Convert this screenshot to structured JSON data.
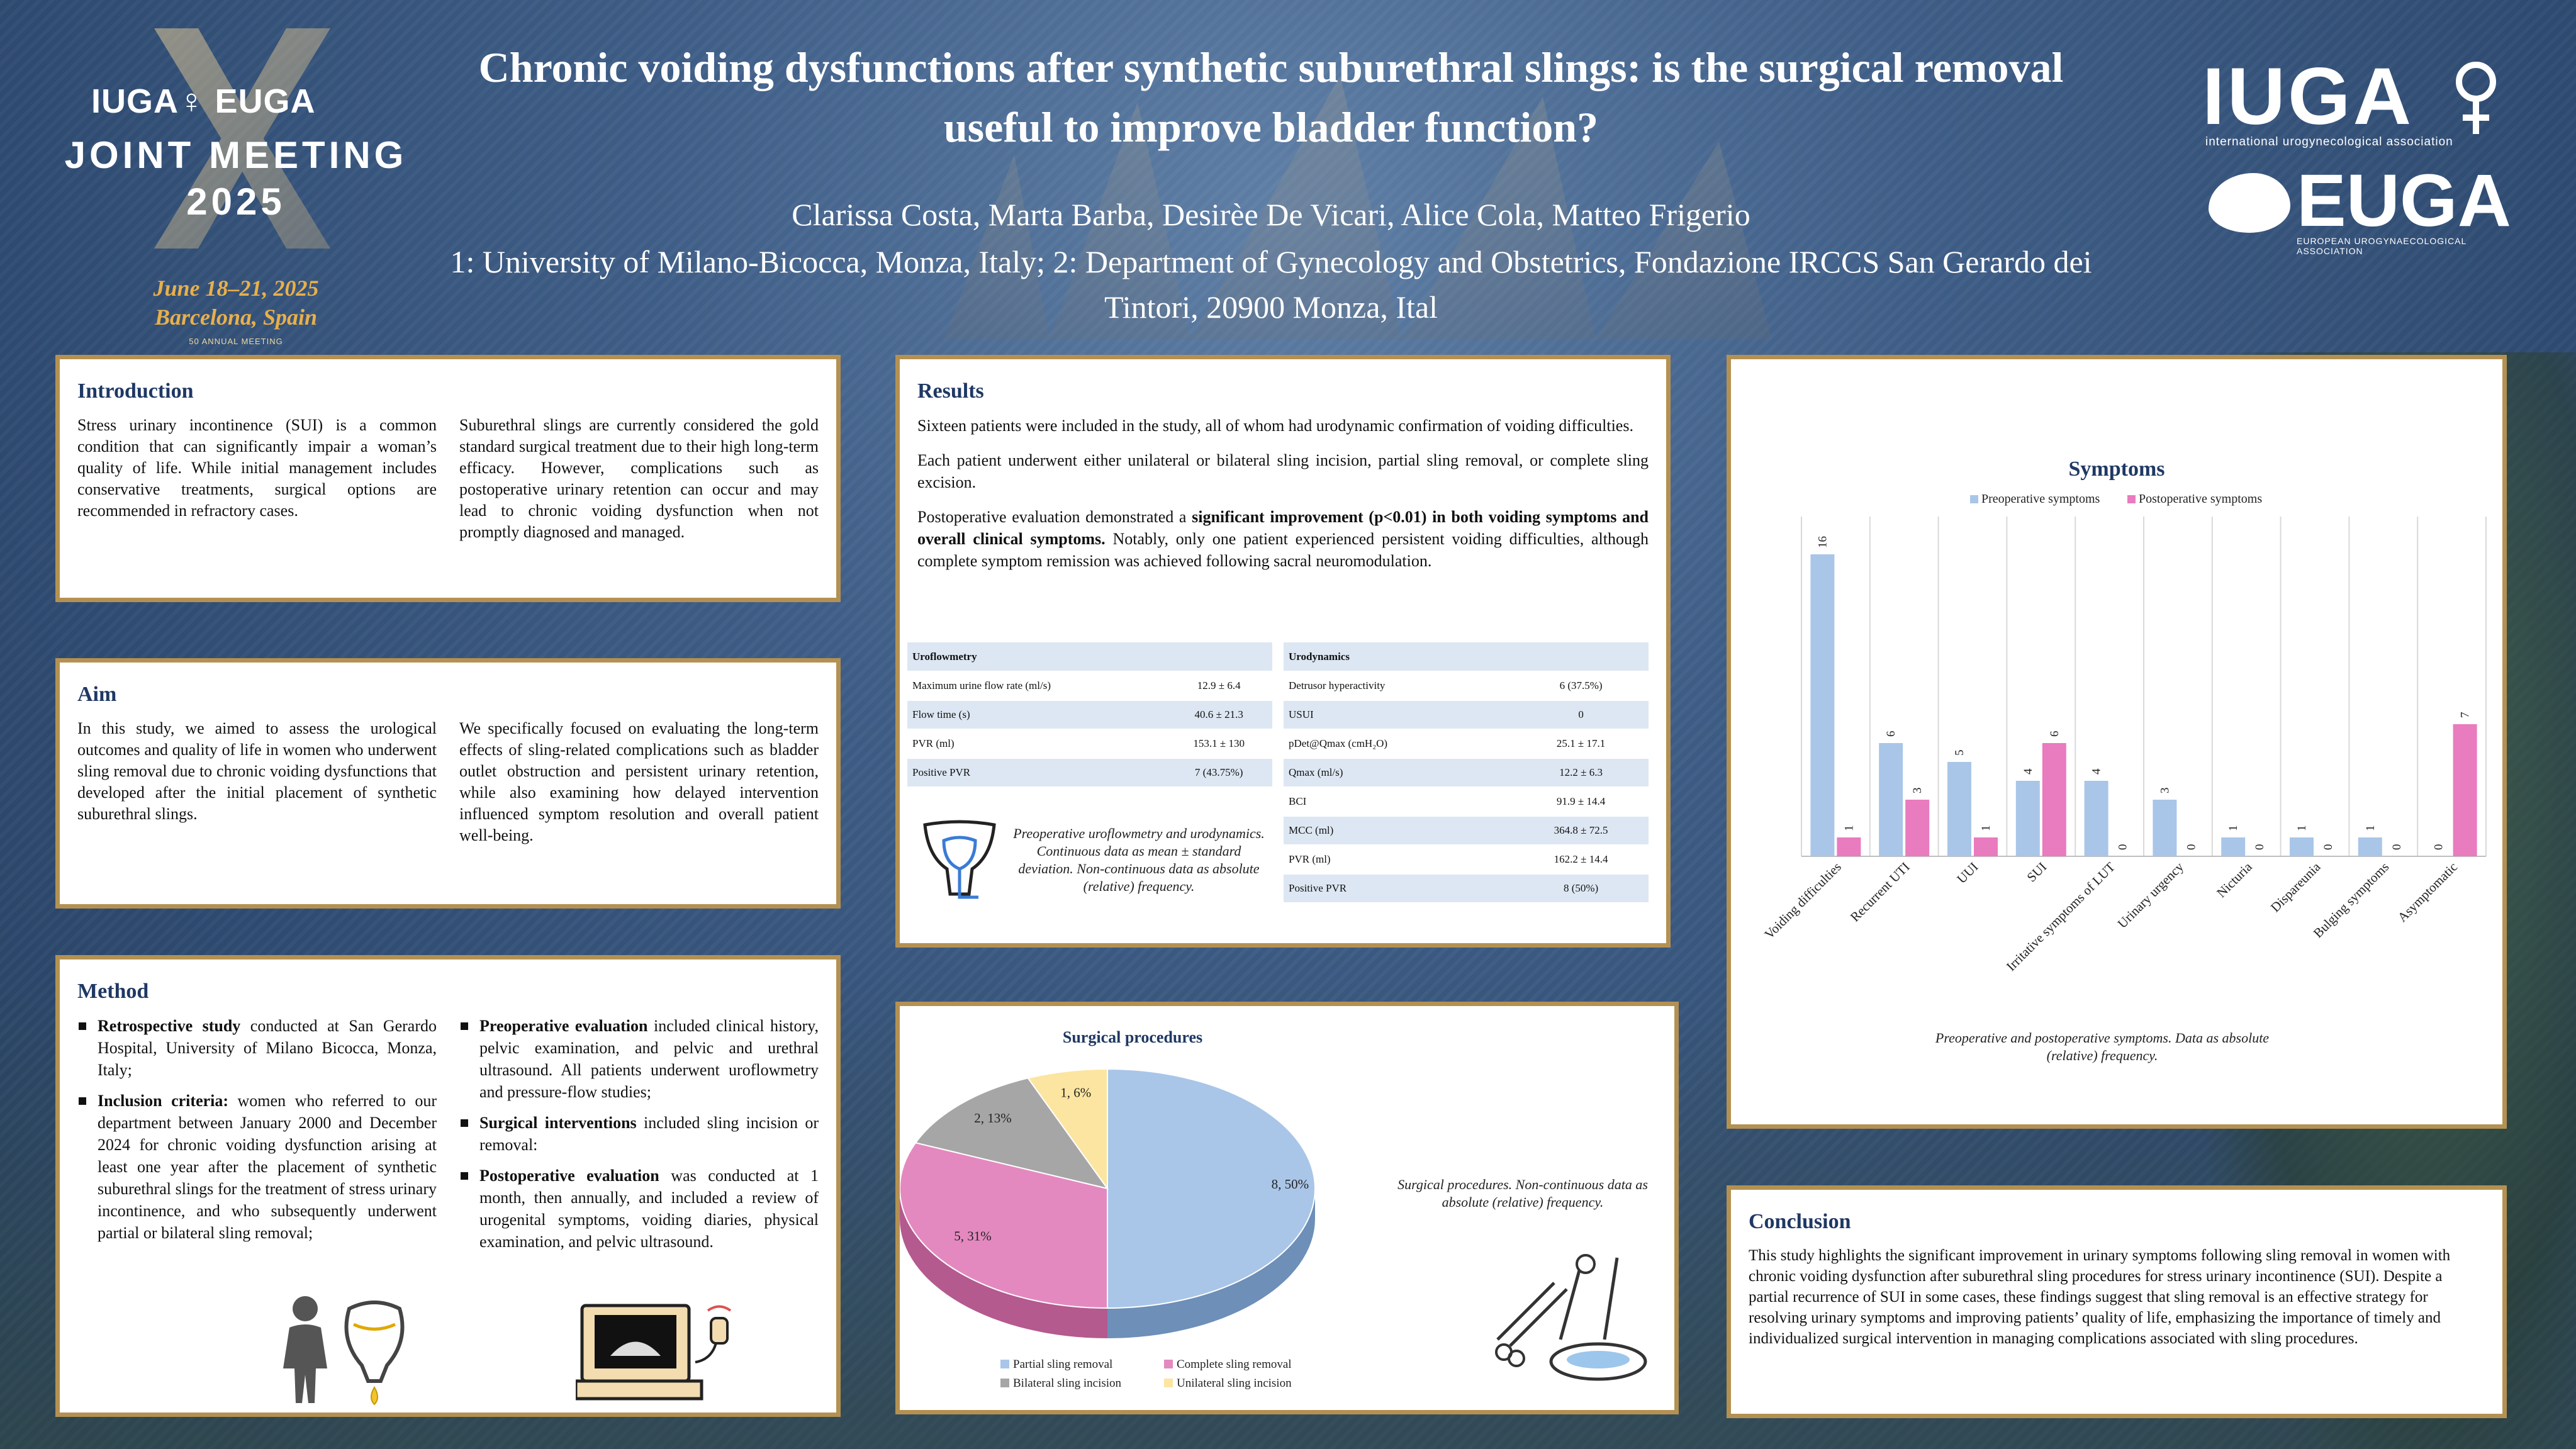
{
  "header": {
    "logo_left": {
      "brand": "IUGA♀ EUGA",
      "meeting_line1": "JOINT MEETING",
      "meeting_line2": "2025",
      "dates": "June 18–21, 2025",
      "location": "Barcelona, Spain",
      "anniversary": "50 ANNUAL MEETING"
    },
    "title": "Chronic voiding dysfunctions after synthetic suburethral slings: is the surgical removal useful to improve bladder function?",
    "authors": "Clarissa Costa, Marta Barba, Desirèe De Vicari, Alice Cola, Matteo Frigerio",
    "affiliation": "1: University of Milano-Bicocca, Monza, Italy; 2: Department of Gynecology and Obstetrics, Fondazione IRCCS San Gerardo dei Tintori, 20900 Monza, Ital",
    "logo_right": {
      "iuga": "IUGA",
      "iuga_sub": "international urogynecological association",
      "euga": "EUGA",
      "euga_sub": "EUROPEAN UROGYNAECOLOGICAL ASSOCIATION"
    }
  },
  "introduction": {
    "heading": "Introduction",
    "col1": "Stress urinary incontinence (SUI) is a common condition that can significantly impair a woman’s quality of life. While initial management includes conservative treatments, surgical options are recommended in refractory cases.",
    "col2": "Suburethral slings are currently considered the gold standard surgical treatment due to their high long-term efficacy. However, complications such as postoperative urinary retention can occur and may lead to chronic voiding dysfunction when not promptly diagnosed and managed."
  },
  "aim": {
    "heading": "Aim",
    "col1": "In this study, we aimed to assess the urological outcomes and quality of life in women who underwent sling removal due to chronic voiding dysfunctions that developed after the initial placement of synthetic suburethral slings.",
    "col2": "We specifically focused on evaluating the long-term effects of sling-related complications such as bladder outlet obstruction and persistent urinary retention, while also examining how delayed intervention influenced symptom resolution and overall patient well-being."
  },
  "method": {
    "heading": "Method",
    "items_left": [
      {
        "bold": "Retrospective study",
        "text": " conducted at San Gerardo Hospital, University of Milano Bicocca, Monza, Italy;"
      },
      {
        "bold": "Inclusion criteria:",
        "text": " women who referred to our department between January 2000 and December 2024 for chronic voiding dysfunction arising at least one year after the placement of synthetic suburethral slings for the treatment of stress urinary incontinence, and who subsequently underwent partial or bilateral sling removal;"
      }
    ],
    "items_right": [
      {
        "bold": "Preoperative evaluation",
        "text": " included clinical history, pelvic examination, and pelvic and urethral ultrasound. All patients underwent uroflowmetry and pressure-flow studies;"
      },
      {
        "bold": "Surgical interventions",
        "text": " included sling incision or removal:"
      },
      {
        "bold": "Postoperative evaluation",
        "text": " was conducted at 1 month, then annually, and included a review of urogenital symptoms, voiding diaries, physical examination, and pelvic ultrasound."
      }
    ]
  },
  "results": {
    "heading": "Results",
    "p1": "Sixteen patients were included in the study, all of whom had urodynamic confirmation of voiding difficulties.",
    "p2": "Each patient underwent either unilateral or bilateral sling incision, partial sling removal, or complete sling excision.",
    "p3_pre": "Postoperative evaluation demonstrated a ",
    "p3_bold": "significant improvement (p<0.01) in both voiding symptoms and overall clinical symptoms.",
    "p3_post": " Notably, only one patient experienced persistent voiding difficulties, although complete symptom remission was achieved following sacral neuromodulation.",
    "uroflowmetry": {
      "header": "Uroflowmetry",
      "rows": [
        {
          "label": "Maximum urine flow rate (ml/s)",
          "value": "12.9 ± 6.4"
        },
        {
          "label": "Flow time (s)",
          "value": "40.6 ± 21.3"
        },
        {
          "label": "PVR (ml)",
          "value": "153.1 ± 130"
        },
        {
          "label": "Positive PVR",
          "value": "7 (43.75%)"
        }
      ]
    },
    "urodynamics": {
      "header": "Urodynamics",
      "rows": [
        {
          "label": "Detrusor hyperactivity",
          "value": "6 (37.5%)"
        },
        {
          "label": "USUI",
          "value": "0"
        },
        {
          "label": "pDet@Qmax (cmH₂O)",
          "value": "25.1 ± 17.1"
        },
        {
          "label": "Qmax (ml/s)",
          "value": "12.2 ± 6.3"
        },
        {
          "label": "BCI",
          "value": "91.9 ± 14.4"
        },
        {
          "label": "MCC (ml)",
          "value": "364.8 ± 72.5"
        },
        {
          "label": "PVR (ml)",
          "value": "162.2 ± 14.4"
        },
        {
          "label": "Positive PVR",
          "value": "8 (50%)"
        }
      ]
    },
    "table_caption": "Preoperative uroflowmetry and urodynamics. Continuous data as mean ± standard deviation. Non-continuous data as absolute (relative) frequency."
  },
  "surgical": {
    "caption": "Surgical procedures. Non-continuous data as absolute (relative) frequency."
  },
  "symptoms_panel": {
    "caption": "Preoperative and postoperative symptoms. Data as absolute (relative) frequency."
  },
  "conclusion": {
    "heading": "Conclusion",
    "text": "This study highlights the significant improvement in urinary symptoms following sling removal in women with chronic voiding dysfunction after suburethral sling procedures for stress urinary incontinence (SUI). Despite a partial recurrence of SUI in some cases, these findings suggest that sling removal is an effective strategy for resolving urinary symptoms and improving patients’ quality of life, emphasizing the importance of timely and individualized surgical intervention in managing complications associated with sling procedures."
  },
  "colors": {
    "panel_border": "#b49152",
    "heading": "#1f3864",
    "series_pre": "#a9c6e8",
    "series_post": "#e97bbf",
    "pie_partial": "#a9c6e8",
    "pie_complete": "#e489c0",
    "pie_bilateral": "#a6a6a6",
    "pie_unilateral": "#fce5a0"
  },
  "icons": [
    "woman-figure-icon",
    "bladder-icon",
    "ultrasound-machine-icon",
    "surgical-instruments-icon",
    "pelvis-icon"
  ],
  "chart_data": [
    {
      "type": "pie",
      "title": "Surgical procedures",
      "categories": [
        "Partial sling removal",
        "Complete sling removal",
        "Bilateral sling incision",
        "Unilateral sling incision"
      ],
      "values": [
        8,
        5,
        2,
        1
      ],
      "data_labels": [
        "8, 50%",
        "5, 31%",
        "2, 13%",
        "1, 6%"
      ],
      "legend": "bottom"
    },
    {
      "type": "bar",
      "title": "Symptoms",
      "categories": [
        "Voiding difficulties",
        "Recurrent UTI",
        "UUI",
        "SUI",
        "Irritative symptoms of LUT",
        "Urinary urgency",
        "Nicturia",
        "Dispareunia",
        "Bulging symptoms",
        "Asymptomatic"
      ],
      "series": [
        {
          "name": "Preoperative symptoms",
          "values": [
            16,
            6,
            5,
            4,
            4,
            3,
            1,
            1,
            1,
            0
          ]
        },
        {
          "name": "Postoperative symptoms",
          "values": [
            1,
            3,
            1,
            6,
            0,
            0,
            0,
            0,
            0,
            7
          ]
        }
      ],
      "ylim": [
        0,
        18
      ],
      "grid": "vertical",
      "legend": "top"
    }
  ]
}
